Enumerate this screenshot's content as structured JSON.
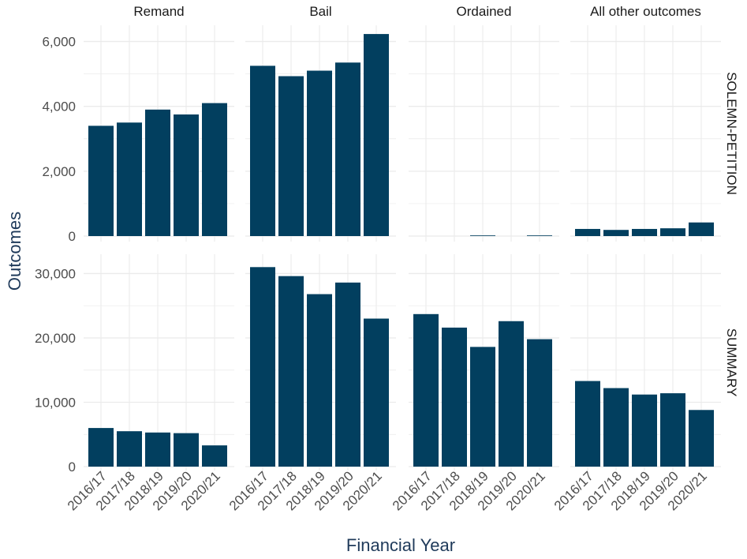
{
  "chart_data": {
    "type": "bar",
    "xlabel": "Financial Year",
    "ylabel": "Outcomes",
    "categories": [
      "2016/17",
      "2017/18",
      "2018/19",
      "2019/20",
      "2020/21"
    ],
    "column_facets": [
      "Remand",
      "Bail",
      "Ordained",
      "All other outcomes"
    ],
    "row_facets": [
      {
        "name": "SOLEMN-PETITION",
        "ylim": [
          0,
          6500
        ],
        "yticks": [
          0,
          2000,
          4000,
          6000
        ],
        "ytick_labels": [
          "0",
          "2,000",
          "4,000",
          "6,000"
        ],
        "panels": [
          {
            "column": "Remand",
            "values": [
              3400,
              3500,
              3900,
              3750,
              4100
            ]
          },
          {
            "column": "Bail",
            "values": [
              5250,
              4930,
              5100,
              5350,
              6230
            ]
          },
          {
            "column": "Ordained",
            "values": [
              0,
              0,
              20,
              0,
              20
            ]
          },
          {
            "column": "All other outcomes",
            "values": [
              220,
              190,
              220,
              240,
              420
            ]
          }
        ]
      },
      {
        "name": "SUMMARY",
        "ylim": [
          0,
          33000
        ],
        "yticks": [
          0,
          10000,
          20000,
          30000
        ],
        "ytick_labels": [
          "0",
          "10,000",
          "20,000",
          "30,000"
        ],
        "panels": [
          {
            "column": "Remand",
            "values": [
              6000,
              5500,
              5300,
              5200,
              3300
            ]
          },
          {
            "column": "Bail",
            "values": [
              31000,
              29600,
              26800,
              28600,
              23000
            ]
          },
          {
            "column": "Ordained",
            "values": [
              23700,
              21600,
              18600,
              22600,
              19800
            ]
          },
          {
            "column": "All other outcomes",
            "values": [
              13300,
              12200,
              11200,
              11400,
              8800
            ]
          }
        ]
      }
    ],
    "grid": true,
    "legend": "none"
  },
  "colors": {
    "bar": "#023f5f",
    "grid": "#ebebeb",
    "strip_text": "#1a1a1a",
    "tick_text": "#4d4d4d",
    "axis_title": "#1f3a5a"
  }
}
